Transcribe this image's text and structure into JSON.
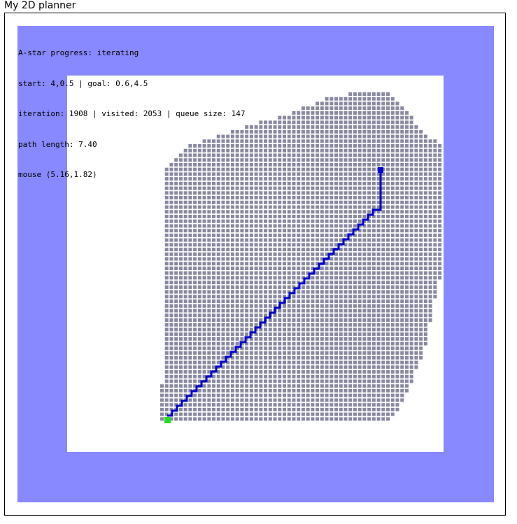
{
  "window": {
    "title": "My 2D planner"
  },
  "colors": {
    "obstacle": "#8888ff",
    "free": "#ffffff",
    "visited": "#8888a0",
    "path": "#0000cc",
    "start": "#22dd22",
    "goal": "#0000dd"
  },
  "hud": {
    "progress": "A-star progress: iterating",
    "start_goal": "start: 4,0.5 | goal: 0.6,4.5",
    "stats": "iteration: 1908 | visited: 2053 | queue size: 147",
    "path_length": "path length: 7.40",
    "mouse": "mouse (5.16,1.82)"
  },
  "planner": {
    "status": "iterating",
    "start": [
      4,
      0.5
    ],
    "goal": [
      0.6,
      4.5
    ],
    "iteration": 1908,
    "visited": 2053,
    "queue_size": 147,
    "path_length": 7.4,
    "mouse": [
      5.16,
      1.82
    ]
  }
}
